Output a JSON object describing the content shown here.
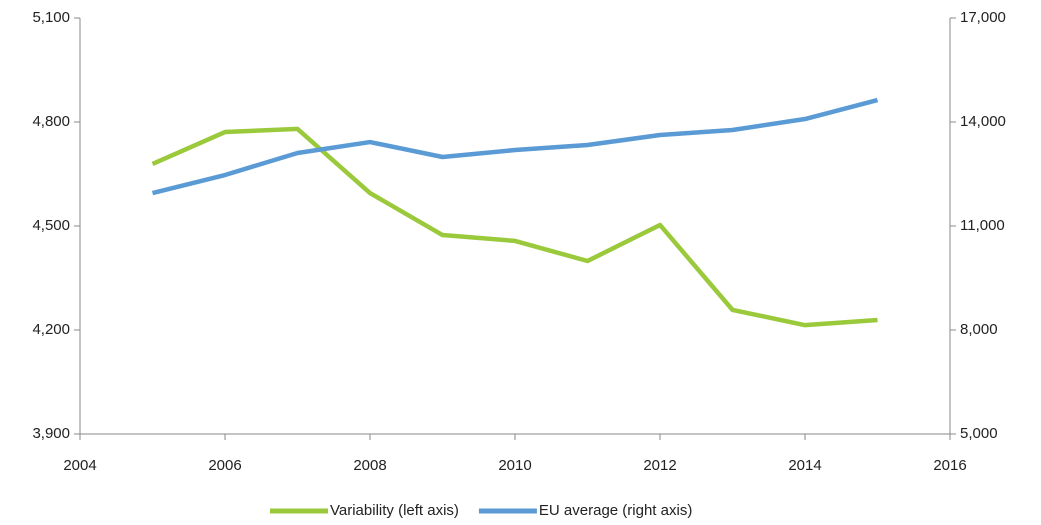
{
  "chart_data": {
    "type": "line",
    "x": [
      2005,
      2006,
      2007,
      2008,
      2009,
      2010,
      2011,
      2012,
      2013,
      2014,
      2015
    ],
    "xlim": [
      2004,
      2016
    ],
    "xticks": [
      2004,
      2006,
      2008,
      2010,
      2012,
      2014,
      2016
    ],
    "ylim": [
      3900,
      5100
    ],
    "yticks": [
      {
        "value": 3900,
        "label": "3,900"
      },
      {
        "value": 4200,
        "label": "4,200"
      },
      {
        "value": 4500,
        "label": "4,500"
      },
      {
        "value": 4800,
        "label": "4,800"
      },
      {
        "value": 5100,
        "label": "5,100"
      }
    ],
    "y2lim": [
      5000,
      17000
    ],
    "y2ticks": [
      {
        "value": 5000,
        "label": "5,000"
      },
      {
        "value": 8000,
        "label": "8,000"
      },
      {
        "value": 11000,
        "label": "11,000"
      },
      {
        "value": 14000,
        "label": "14,000"
      },
      {
        "value": 17000,
        "label": "17,000"
      }
    ],
    "series": [
      {
        "name": "Variability (left axis)",
        "color": "#9bc93c",
        "values": [
          4679,
          4771,
          4780,
          4595,
          4474,
          4457,
          4399,
          4503,
          4258,
          4214,
          4229
        ]
      },
      {
        "name": "EU average (right axis)",
        "color": "#5b9bd5",
        "axis": "y2",
        "values": [
          11951,
          12471,
          13106,
          13422,
          12990,
          13192,
          13336,
          13625,
          13769,
          14086,
          14634
        ]
      }
    ],
    "legend": "bottom"
  }
}
